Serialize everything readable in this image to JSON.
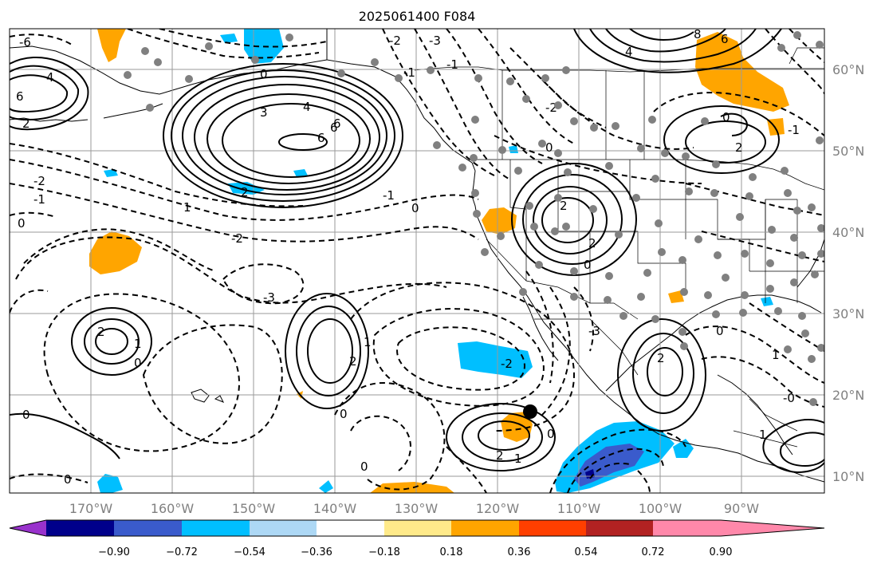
{
  "title": "2025061400 F084",
  "lon_labels": [
    "170°W",
    "160°W",
    "150°W",
    "140°W",
    "130°W",
    "120°W",
    "110°W",
    "100°W",
    "90°W"
  ],
  "lat_labels": [
    "60°N",
    "50°N",
    "40°N",
    "30°N",
    "20°N",
    "10°N"
  ],
  "colorbar": {
    "colors": [
      "#9932cc",
      "#00008b",
      "#3a5bcc",
      "#00bfff",
      "#add8f5",
      "#ffffff",
      "#ffea8a",
      "#ffa500",
      "#ff3f00",
      "#b22222",
      "#ff88aa"
    ],
    "tick_labels": [
      "−0.90",
      "−0.72",
      "−0.54",
      "−0.36",
      "−0.18",
      "0.18",
      "0.36",
      "0.54",
      "0.72",
      "0.90"
    ]
  },
  "contour_labels": {
    "l01": "6",
    "l02": "4",
    "l03": "3",
    "l04": "6",
    "l05": "6",
    "l06": "2",
    "l07": "1",
    "l08": "-2",
    "l09": "-1",
    "l10": "-1",
    "l11": "0",
    "l12": "-2",
    "l13": "0",
    "l14": "-3",
    "l15": "2",
    "l16": "1",
    "l17": "0",
    "l18": "2",
    "l19": "1",
    "l20": "0",
    "l21": "0",
    "l22": "0",
    "l23": "-2",
    "l24": "2",
    "l25": "1",
    "l26": "0",
    "l27": "2",
    "l28": "2",
    "l29": "0",
    "l30": "-3",
    "l31": "2",
    "l32": "0",
    "l33": "1",
    "l34": "-0",
    "l35": "1",
    "l36": "8",
    "l37": "6",
    "l38": "4",
    "l39": "2",
    "l40": "-1",
    "l41": "0",
    "l42": "-2",
    "l43": "-1",
    "l44": "0",
    "l45": "-2",
    "l46": "-3",
    "l47": "6",
    "l48": "2",
    "l49": "-1",
    "l50": "0",
    "l51": "4",
    "l52": "-6",
    "l53": "0"
  }
}
